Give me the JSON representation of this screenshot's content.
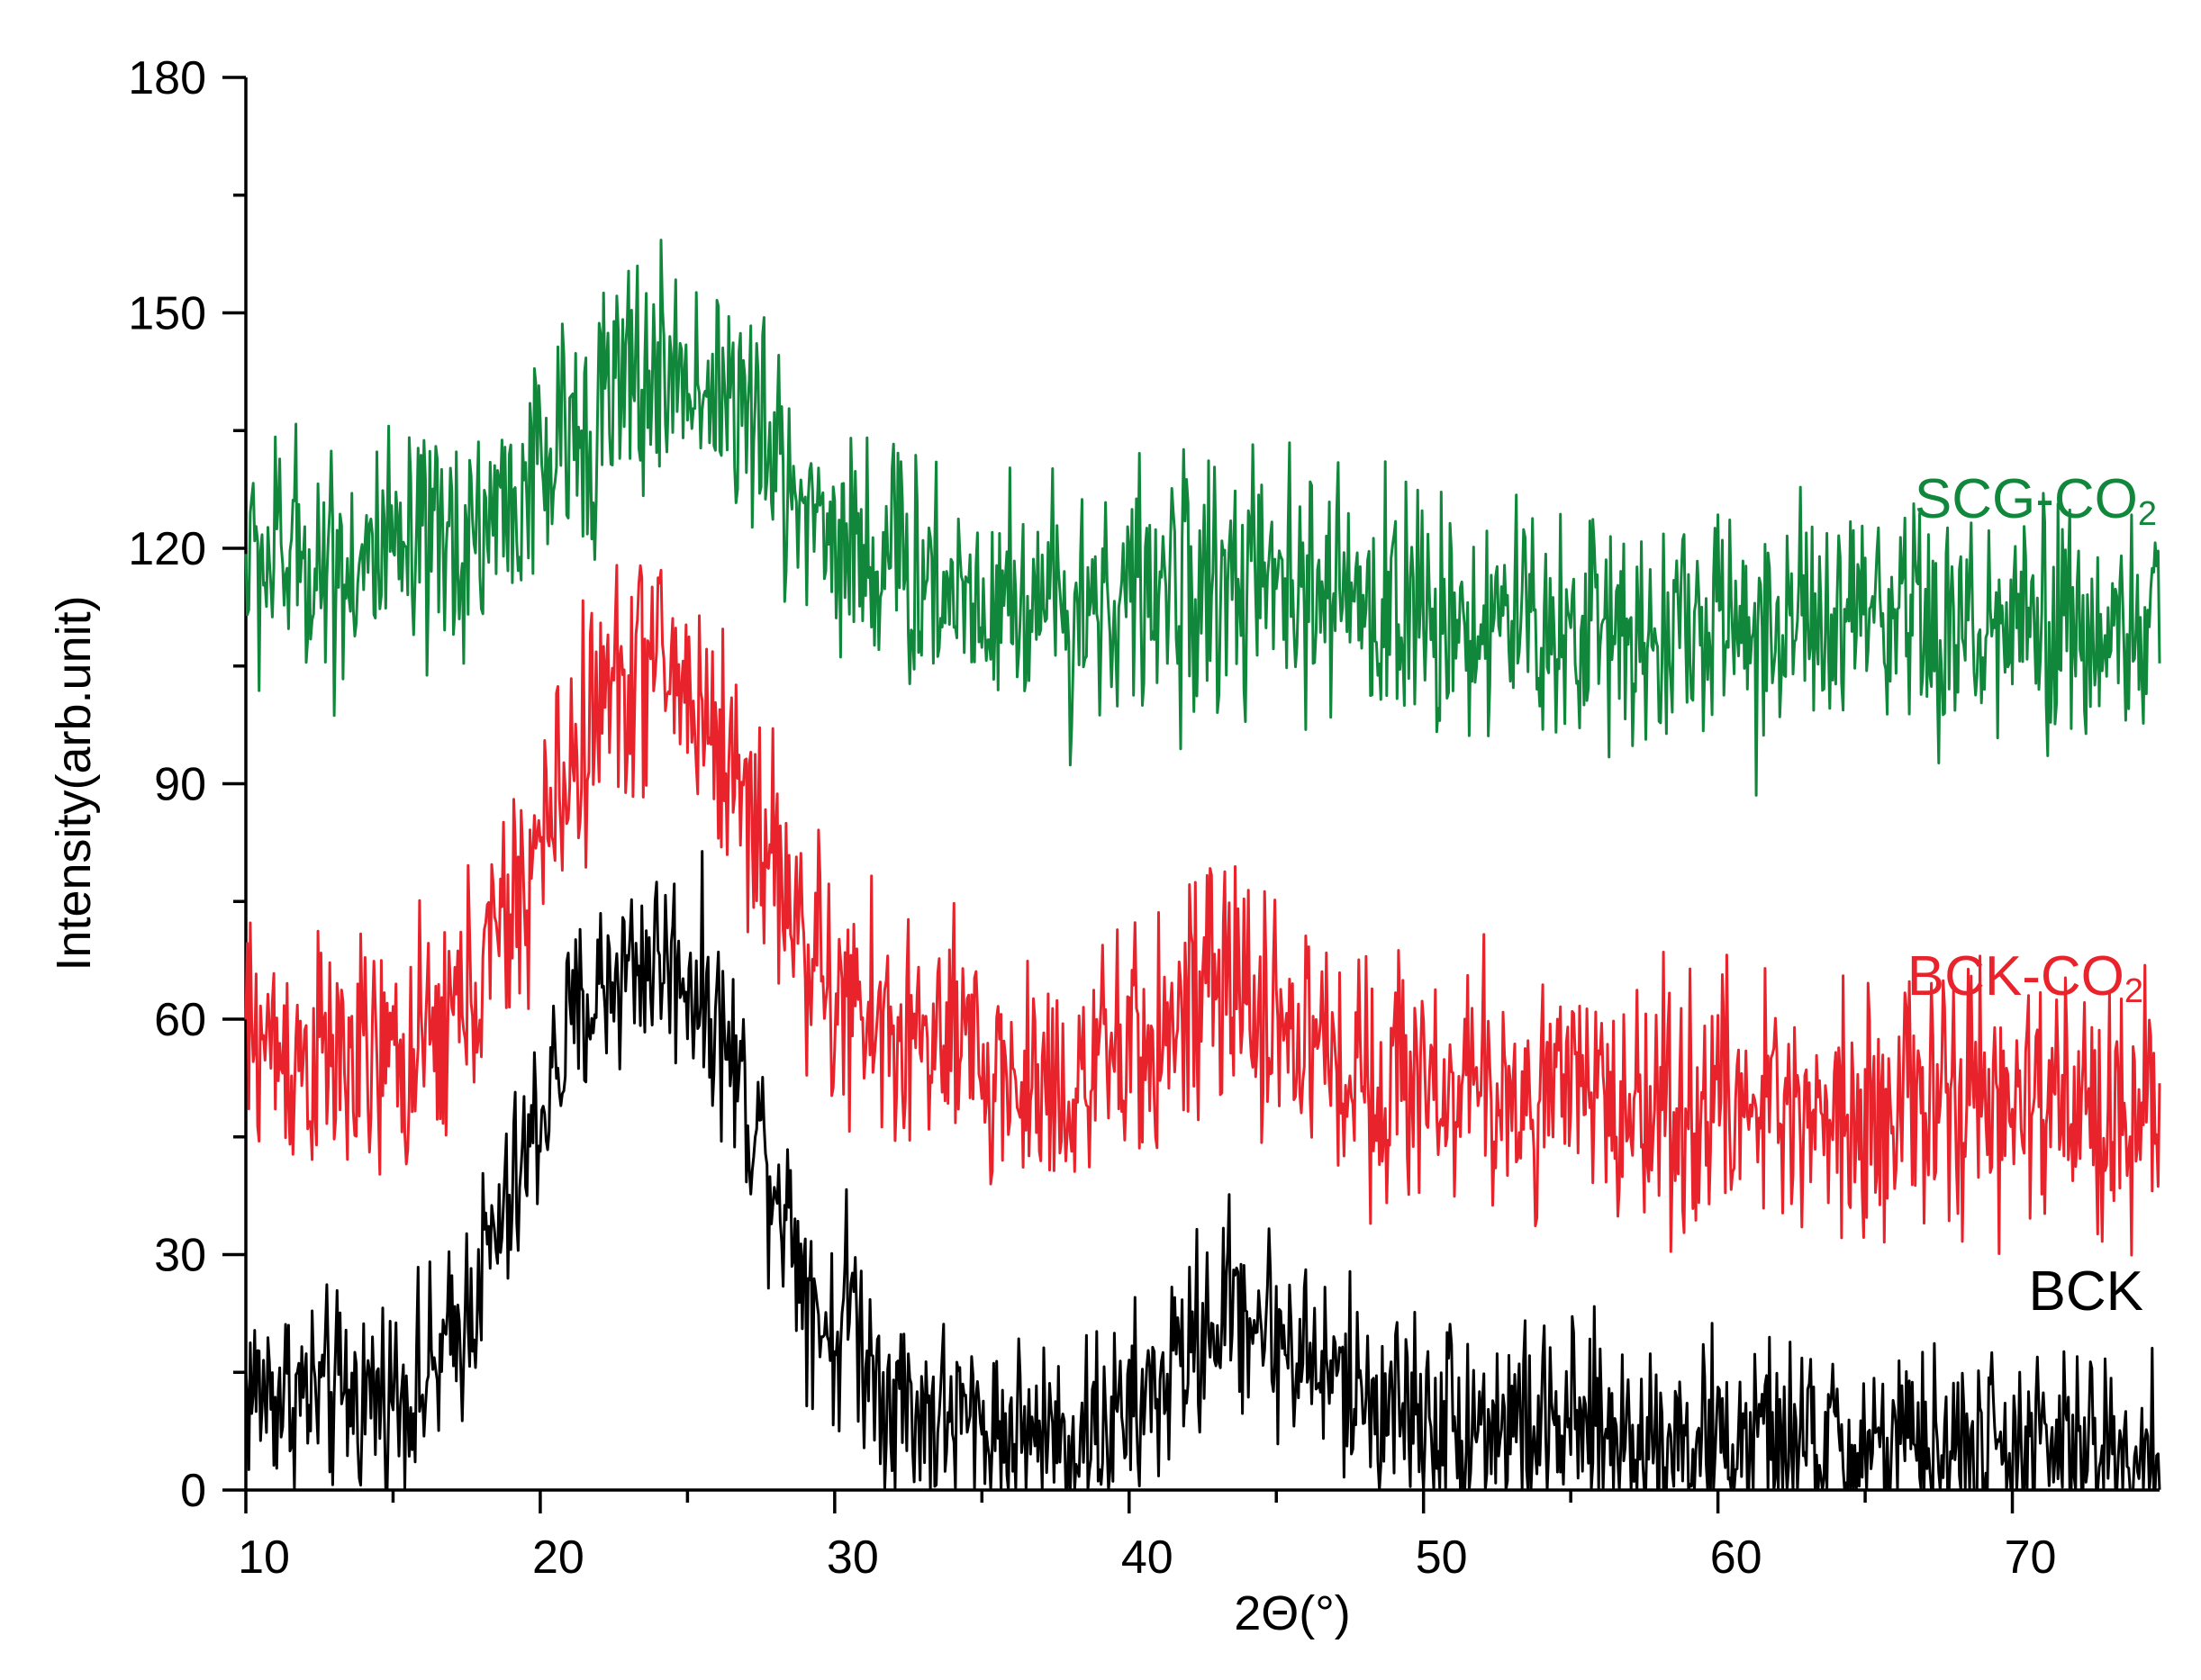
{
  "chart_data": {
    "type": "line",
    "title": "",
    "xlabel": "2Θ(°)",
    "ylabel": "Intensity(arb.unit)",
    "xlim": [
      10,
      75
    ],
    "ylim": [
      0,
      180
    ],
    "x_ticks": [
      10,
      20,
      30,
      40,
      50,
      60,
      70
    ],
    "y_ticks": [
      0,
      30,
      60,
      90,
      120,
      150,
      180
    ],
    "x_minor_step": 5,
    "y_minor_step": 15,
    "grid": false,
    "legend": "labels placed at right end of each curve",
    "series": [
      {
        "name": "BCK",
        "label_main": "BCK",
        "label_sub": "",
        "color": "#000000",
        "x": [
          10,
          12,
          14,
          16,
          17,
          18,
          19,
          20,
          21,
          22,
          23,
          24,
          25,
          26,
          27,
          28,
          29,
          30,
          30.5,
          31,
          32,
          33,
          34,
          36,
          38,
          40,
          41,
          42,
          43,
          43.5,
          44,
          45,
          46,
          47,
          48,
          50,
          52,
          54,
          56,
          58,
          60,
          62,
          64,
          66,
          68,
          70,
          72,
          75
        ],
        "y": [
          13,
          12,
          12,
          13,
          18,
          28,
          36,
          48,
          58,
          64,
          67,
          68,
          66,
          60,
          50,
          40,
          28,
          18,
          26,
          18,
          12,
          10,
          9,
          7,
          7,
          9,
          13,
          18,
          22,
          24,
          23,
          20,
          17,
          14,
          12,
          10,
          9,
          8,
          7,
          7,
          6,
          6,
          5,
          5,
          5,
          5,
          5,
          5
        ]
      },
      {
        "name": "BCK-CO2",
        "label_main": "BCK-CO",
        "label_sub": "2",
        "color": "#e8232b",
        "x": [
          10,
          12,
          14,
          16,
          17,
          18,
          19,
          20,
          21,
          22,
          23,
          24,
          25,
          26,
          27,
          28,
          29,
          30,
          32,
          34,
          36,
          38,
          40,
          41,
          42,
          43,
          44,
          45,
          46,
          47,
          48,
          50,
          52,
          54,
          56,
          58,
          60,
          62,
          64,
          66,
          68,
          70,
          72,
          75
        ],
        "y": [
          58,
          55,
          54,
          55,
          60,
          66,
          73,
          82,
          92,
          100,
          104,
          106,
          102,
          96,
          88,
          80,
          70,
          62,
          58,
          56,
          52,
          52,
          55,
          58,
          61,
          64,
          63,
          60,
          57,
          55,
          53,
          52,
          51,
          50,
          50,
          49,
          49,
          49,
          49,
          49,
          49,
          49,
          49,
          49
        ]
      },
      {
        "name": "SCG-CO2",
        "label_main": "SCG-CO",
        "label_sub": "2",
        "color": "#10873b",
        "x": [
          10,
          12,
          14,
          16,
          18,
          20,
          21,
          22,
          23,
          24,
          25,
          26,
          27,
          28,
          29,
          30,
          32,
          34,
          36,
          38,
          40,
          42,
          44,
          46,
          48,
          50,
          52,
          54,
          56,
          58,
          60,
          62,
          64,
          66,
          68,
          70,
          72,
          75
        ],
        "y": [
          118,
          119,
          118,
          118,
          123,
          129,
          134,
          138,
          141,
          142,
          142,
          141,
          137,
          131,
          126,
          122,
          118,
          115,
          114,
          113,
          114,
          115,
          115,
          114,
          113,
          112,
          111,
          110,
          110,
          110,
          110,
          110,
          110,
          109,
          109,
          109,
          109,
          109
        ]
      }
    ]
  }
}
